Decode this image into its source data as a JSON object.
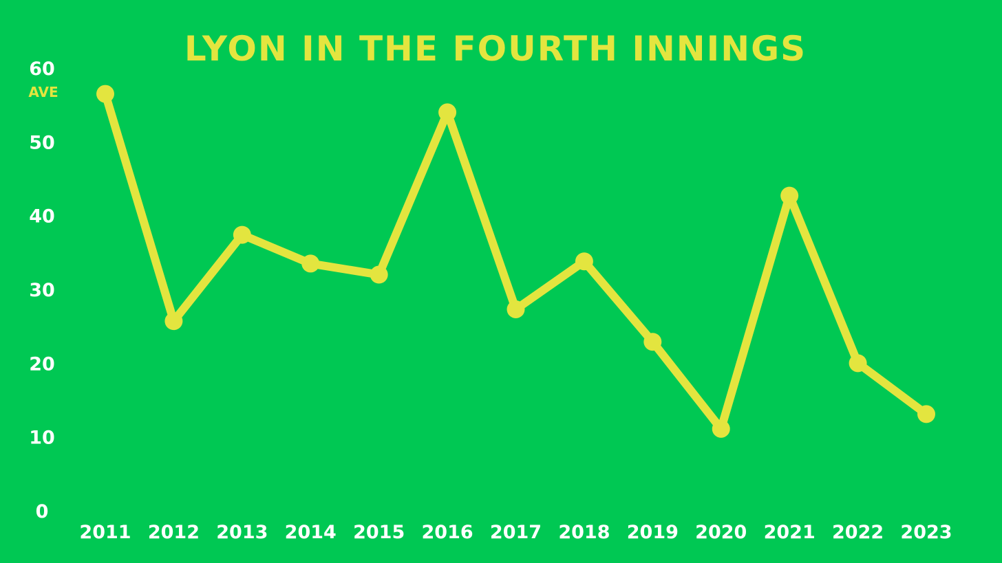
{
  "colors": {
    "background": "#00c853",
    "line": "#e3e53f",
    "title": "#e3e53f",
    "tick_label": "#ffffff",
    "unit_label": "#e3e53f"
  },
  "chart_data": {
    "type": "line",
    "title": "LYON IN THE FOURTH INNINGS",
    "ylabel": "AVE",
    "xlabel": "",
    "categories": [
      "2011",
      "2012",
      "2013",
      "2014",
      "2015",
      "2016",
      "2017",
      "2018",
      "2019",
      "2020",
      "2021",
      "2022",
      "2023"
    ],
    "series": [
      {
        "values": [
          56.5,
          25.7,
          37.4,
          33.5,
          32.0,
          54.0,
          27.3,
          33.8,
          22.9,
          11.1,
          42.7,
          20.0,
          13.1
        ]
      }
    ],
    "ylim": [
      0,
      60
    ],
    "yticks": [
      0,
      10,
      20,
      30,
      40,
      50,
      60
    ],
    "grid": false,
    "legend": "none"
  }
}
